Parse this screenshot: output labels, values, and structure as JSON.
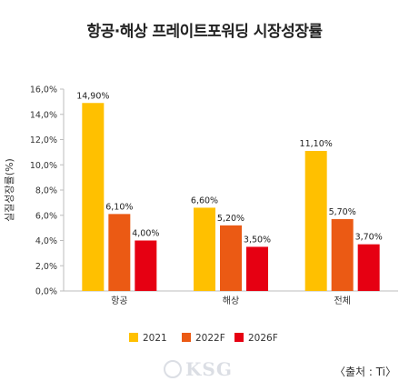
{
  "chart_data": {
    "type": "bar",
    "title": "항공·해상 프레이트포워딩 시장성장률",
    "ylabel": "실질성장률(%)",
    "xlabel": "",
    "categories": [
      "항공",
      "해상",
      "전체"
    ],
    "series": [
      {
        "name": "2021",
        "values": [
          14.9,
          6.6,
          11.1
        ],
        "labels": [
          "14,90%",
          "6,60%",
          "11,10%"
        ],
        "color": "#FFC000"
      },
      {
        "name": "2022F",
        "values": [
          6.1,
          5.2,
          5.7
        ],
        "labels": [
          "6,10%",
          "5,20%",
          "5,70%"
        ],
        "color": "#EB5A14"
      },
      {
        "name": "2026F",
        "values": [
          4.0,
          3.5,
          3.7
        ],
        "labels": [
          "4,00%",
          "3,50%",
          "3,70%"
        ],
        "color": "#E60012"
      }
    ],
    "ylim": [
      0,
      16
    ],
    "yticks": [
      0,
      2,
      4,
      6,
      8,
      10,
      12,
      14,
      16
    ],
    "ytick_labels": [
      "0,0%",
      "2,0%",
      "4,0%",
      "6,0%",
      "8,0%",
      "10,0%",
      "12,0%",
      "14,0%",
      "16,0%"
    ],
    "grid": false,
    "legend": "bottom"
  },
  "source_note": "〈출처 : Ti〉",
  "watermark": "KSG"
}
